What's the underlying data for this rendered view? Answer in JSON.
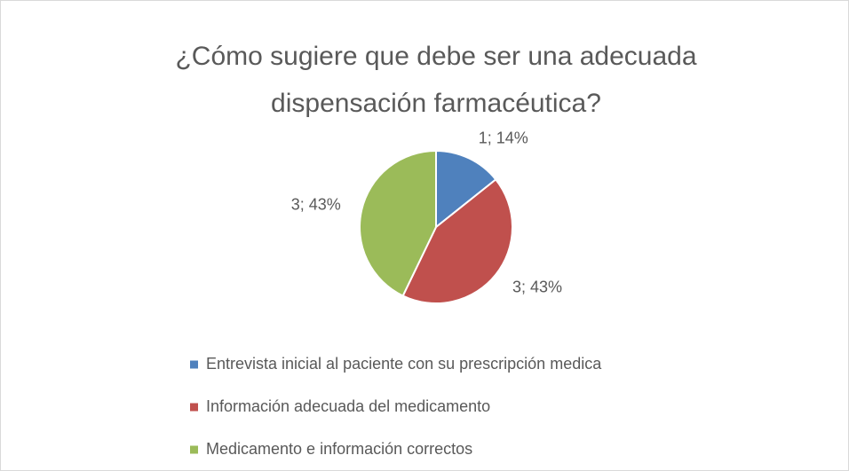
{
  "chart_data": {
    "type": "pie",
    "title": "¿Cómo sugiere que debe ser una adecuada dispensación farmacéutica?",
    "title_lines": [
      "¿Cómo sugiere que debe ser una adecuada",
      "dispensación farmacéutica?"
    ],
    "categories": [
      "Entrevista inicial al paciente con su prescripción medica",
      "Información adecuada del medicamento",
      "Medicamento e información correctos"
    ],
    "values": [
      1,
      3,
      3
    ],
    "value_labels": [
      "1; 14%",
      "3; 43%",
      "3; 43%"
    ],
    "colors": [
      "#4f81bd",
      "#c0504d",
      "#9bbb59"
    ],
    "legend": "bottom"
  }
}
